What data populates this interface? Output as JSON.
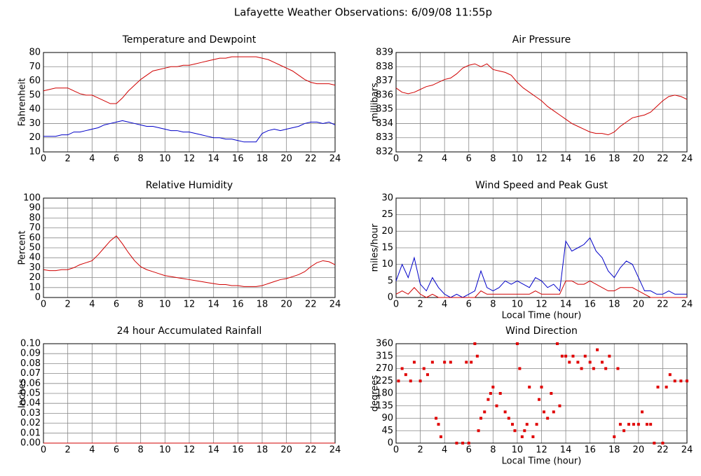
{
  "title": "Lafayette Weather Observations: 6/09/08 11:55p",
  "chart_data": [
    {
      "type": "line",
      "title": "Temperature and Dewpoint",
      "ylabel": "Fahrenheit",
      "x": [
        0,
        0.5,
        1,
        1.5,
        2,
        2.5,
        3,
        3.5,
        4,
        4.5,
        5,
        5.5,
        6,
        6.5,
        7,
        7.5,
        8,
        8.5,
        9,
        9.5,
        10,
        10.5,
        11,
        11.5,
        12,
        12.5,
        13,
        13.5,
        14,
        14.5,
        15,
        15.5,
        16,
        16.5,
        17,
        17.5,
        18,
        18.5,
        19,
        19.5,
        20,
        20.5,
        21,
        21.5,
        22,
        22.5,
        23,
        23.5,
        24
      ],
      "series": [
        {
          "color": "#d00000",
          "values": [
            53,
            54,
            55,
            55,
            55,
            53,
            51,
            50,
            50,
            48,
            46,
            44,
            44,
            48,
            53,
            57,
            61,
            64,
            67,
            68,
            69,
            70,
            70,
            71,
            71,
            72,
            73,
            74,
            75,
            76,
            76,
            77,
            77,
            77,
            77,
            77,
            76,
            75,
            73,
            71,
            69,
            67,
            64,
            61,
            59,
            58,
            58,
            58,
            57
          ]
        },
        {
          "color": "#0000c8",
          "values": [
            21,
            21,
            21,
            22,
            22,
            24,
            24,
            25,
            26,
            27,
            29,
            30,
            31,
            32,
            31,
            30,
            29,
            28,
            28,
            27,
            26,
            25,
            25,
            24,
            24,
            23,
            22,
            21,
            20,
            20,
            19,
            19,
            18,
            17,
            17,
            17,
            23,
            25,
            26,
            25,
            26,
            27,
            28,
            30,
            31,
            31,
            30,
            31,
            29
          ]
        }
      ],
      "xlim": [
        0,
        24
      ],
      "ylim": [
        10,
        80
      ],
      "xticks": [
        0,
        2,
        4,
        6,
        8,
        10,
        12,
        14,
        16,
        18,
        20,
        22,
        24
      ],
      "yticks": [
        10,
        20,
        30,
        40,
        50,
        60,
        70,
        80
      ],
      "grid": true
    },
    {
      "type": "line",
      "title": "Air Pressure",
      "ylabel": "millibars",
      "x": [
        0,
        0.5,
        1,
        1.5,
        2,
        2.5,
        3,
        3.5,
        4,
        4.5,
        5,
        5.5,
        6,
        6.5,
        7,
        7.5,
        8,
        8.5,
        9,
        9.5,
        10,
        10.5,
        11,
        11.5,
        12,
        12.5,
        13,
        13.5,
        14,
        14.5,
        15,
        15.5,
        16,
        16.5,
        17,
        17.5,
        18,
        18.5,
        19,
        19.5,
        20,
        20.5,
        21,
        21.5,
        22,
        22.5,
        23,
        23.5,
        24
      ],
      "series": [
        {
          "color": "#d00000",
          "values": [
            836.5,
            836.2,
            836.1,
            836.2,
            836.4,
            836.6,
            836.7,
            836.9,
            837.1,
            837.2,
            837.5,
            837.9,
            838.1,
            838.2,
            838.0,
            838.2,
            837.8,
            837.7,
            837.6,
            837.4,
            836.9,
            836.5,
            836.2,
            835.9,
            835.6,
            835.2,
            834.9,
            834.6,
            834.3,
            834.0,
            833.8,
            833.6,
            833.4,
            833.3,
            833.3,
            833.2,
            833.4,
            833.8,
            834.1,
            834.4,
            834.5,
            834.6,
            834.8,
            835.2,
            835.6,
            835.9,
            836.0,
            835.9,
            835.7
          ]
        }
      ],
      "xlim": [
        0,
        24
      ],
      "ylim": [
        832,
        839
      ],
      "xticks": [
        0,
        2,
        4,
        6,
        8,
        10,
        12,
        14,
        16,
        18,
        20,
        22,
        24
      ],
      "yticks": [
        832,
        833,
        834,
        835,
        836,
        837,
        838,
        839
      ],
      "grid": true
    },
    {
      "type": "line",
      "title": "Relative Humidity",
      "ylabel": "Percent",
      "x": [
        0,
        0.5,
        1,
        1.5,
        2,
        2.5,
        3,
        3.5,
        4,
        4.5,
        5,
        5.5,
        6,
        6.5,
        7,
        7.5,
        8,
        8.5,
        9,
        9.5,
        10,
        10.5,
        11,
        11.5,
        12,
        12.5,
        13,
        13.5,
        14,
        14.5,
        15,
        15.5,
        16,
        16.5,
        17,
        17.5,
        18,
        18.5,
        19,
        19.5,
        20,
        20.5,
        21,
        21.5,
        22,
        22.5,
        23,
        23.5,
        24
      ],
      "series": [
        {
          "color": "#d00000",
          "values": [
            28,
            27,
            27,
            28,
            28,
            30,
            33,
            35,
            37,
            43,
            50,
            57,
            62,
            54,
            45,
            37,
            31,
            28,
            26,
            24,
            22,
            21,
            20,
            19,
            18,
            17,
            16,
            15,
            14,
            13,
            13,
            12,
            12,
            11,
            11,
            11,
            12,
            14,
            16,
            18,
            19,
            21,
            23,
            26,
            31,
            35,
            37,
            36,
            33
          ]
        }
      ],
      "xlim": [
        0,
        24
      ],
      "ylim": [
        0,
        100
      ],
      "xticks": [
        0,
        2,
        4,
        6,
        8,
        10,
        12,
        14,
        16,
        18,
        20,
        22,
        24
      ],
      "yticks": [
        0,
        10,
        20,
        30,
        40,
        50,
        60,
        70,
        80,
        90,
        100
      ],
      "grid": true
    },
    {
      "type": "line",
      "title": "Wind Speed and Peak Gust",
      "ylabel": "miles/hour",
      "xlabel": "Local Time (hour)",
      "x": [
        0,
        0.5,
        1,
        1.5,
        2,
        2.5,
        3,
        3.5,
        4,
        4.5,
        5,
        5.5,
        6,
        6.5,
        7,
        7.5,
        8,
        8.5,
        9,
        9.5,
        10,
        10.5,
        11,
        11.5,
        12,
        12.5,
        13,
        13.5,
        14,
        14.5,
        15,
        15.5,
        16,
        16.5,
        17,
        17.5,
        18,
        18.5,
        19,
        19.5,
        20,
        20.5,
        21,
        21.5,
        22,
        22.5,
        23,
        23.5,
        24
      ],
      "series": [
        {
          "color": "#0000c8",
          "values": [
            5,
            10,
            6,
            12,
            4,
            2,
            6,
            3,
            1,
            0,
            1,
            0,
            1,
            2,
            8,
            3,
            2,
            3,
            5,
            4,
            5,
            4,
            3,
            6,
            5,
            3,
            4,
            2,
            17,
            14,
            15,
            16,
            18,
            14,
            12,
            8,
            6,
            9,
            11,
            10,
            6,
            2,
            2,
            1,
            1,
            2,
            1,
            1,
            1
          ]
        },
        {
          "color": "#d00000",
          "values": [
            1,
            2,
            1,
            3,
            1,
            0,
            1,
            0,
            0,
            0,
            0,
            0,
            0,
            0,
            2,
            1,
            1,
            1,
            1,
            1,
            1,
            1,
            1,
            2,
            1,
            1,
            1,
            1,
            5,
            5,
            4,
            4,
            5,
            4,
            3,
            2,
            2,
            3,
            3,
            3,
            2,
            1,
            0,
            0,
            0,
            0,
            0,
            0,
            0
          ]
        }
      ],
      "xlim": [
        0,
        24
      ],
      "ylim": [
        0,
        30
      ],
      "xticks": [
        0,
        2,
        4,
        6,
        8,
        10,
        12,
        14,
        16,
        18,
        20,
        22,
        24
      ],
      "yticks": [
        0,
        5,
        10,
        15,
        20,
        25,
        30
      ],
      "grid": true
    },
    {
      "type": "line",
      "title": "24 hour Accumulated Rainfall",
      "ylabel": "Inches",
      "x": [
        0,
        24
      ],
      "series": [
        {
          "color": "#d00000",
          "values": [
            0,
            0
          ]
        }
      ],
      "xlim": [
        0,
        24
      ],
      "ylim": [
        0,
        0.1
      ],
      "xticks": [
        0,
        2,
        4,
        6,
        8,
        10,
        12,
        14,
        16,
        18,
        20,
        22,
        24
      ],
      "yticks": [
        {
          "value": 0,
          "label": "0.00"
        },
        {
          "value": 0.01,
          "label": "0.01"
        },
        {
          "value": 0.02,
          "label": "0.02"
        },
        {
          "value": 0.03,
          "label": "0.03"
        },
        {
          "value": 0.04,
          "label": "0.04"
        },
        {
          "value": 0.05,
          "label": "0.05"
        },
        {
          "value": 0.06,
          "label": "0.06"
        },
        {
          "value": 0.07,
          "label": "0.07"
        },
        {
          "value": 0.08,
          "label": "0.08"
        },
        {
          "value": 0.09,
          "label": "0.09"
        },
        {
          "value": 0.1,
          "label": "0.10"
        }
      ],
      "grid": true
    },
    {
      "type": "scatter",
      "title": "Wind Direction",
      "ylabel": "degrees",
      "xlabel": "Local Time (hour)",
      "x": [
        0.2,
        0.5,
        0.8,
        1.2,
        1.5,
        2,
        2.3,
        2.6,
        3,
        3.3,
        3.5,
        3.7,
        4,
        4.5,
        5,
        5.5,
        6,
        5.8,
        6.2,
        6.5,
        6.7,
        6.8,
        7,
        7.3,
        7.6,
        7.8,
        8,
        8.3,
        8.6,
        9,
        9.3,
        9.6,
        9.8,
        10,
        10.2,
        10.4,
        10.6,
        10.8,
        11,
        11.3,
        11.6,
        11.8,
        12,
        12.2,
        12.5,
        12.8,
        13,
        13.3,
        13.5,
        13.7,
        14,
        14.3,
        14.6,
        15,
        15.3,
        15.6,
        16,
        16.3,
        16.6,
        17,
        17.3,
        17.6,
        18,
        18.3,
        18.5,
        18.8,
        19.2,
        19.6,
        20,
        20.3,
        20.7,
        21,
        21.3,
        21.6,
        22,
        22.3,
        22.6,
        23,
        23.5,
        24
      ],
      "series": [
        {
          "color": "#e00000",
          "values": [
            225,
            270,
            248,
            225,
            293,
            225,
            270,
            248,
            293,
            90,
            68,
            23,
            293,
            293,
            0,
            0,
            0,
            293,
            293,
            360,
            315,
            45,
            90,
            113,
            158,
            180,
            203,
            135,
            180,
            113,
            90,
            68,
            45,
            360,
            270,
            23,
            45,
            68,
            203,
            23,
            68,
            158,
            203,
            113,
            90,
            180,
            113,
            360,
            135,
            315,
            315,
            293,
            315,
            293,
            270,
            315,
            293,
            270,
            338,
            293,
            270,
            315,
            23,
            270,
            68,
            45,
            68,
            68,
            68,
            113,
            68,
            68,
            0,
            203,
            0,
            203,
            248,
            225,
            225,
            225
          ]
        }
      ],
      "xlim": [
        0,
        24
      ],
      "ylim": [
        0,
        360
      ],
      "xticks": [
        0,
        2,
        4,
        6,
        8,
        10,
        12,
        14,
        16,
        18,
        20,
        22,
        24
      ],
      "yticks": [
        0,
        45,
        90,
        135,
        180,
        225,
        270,
        315,
        360
      ],
      "grid": true
    }
  ]
}
